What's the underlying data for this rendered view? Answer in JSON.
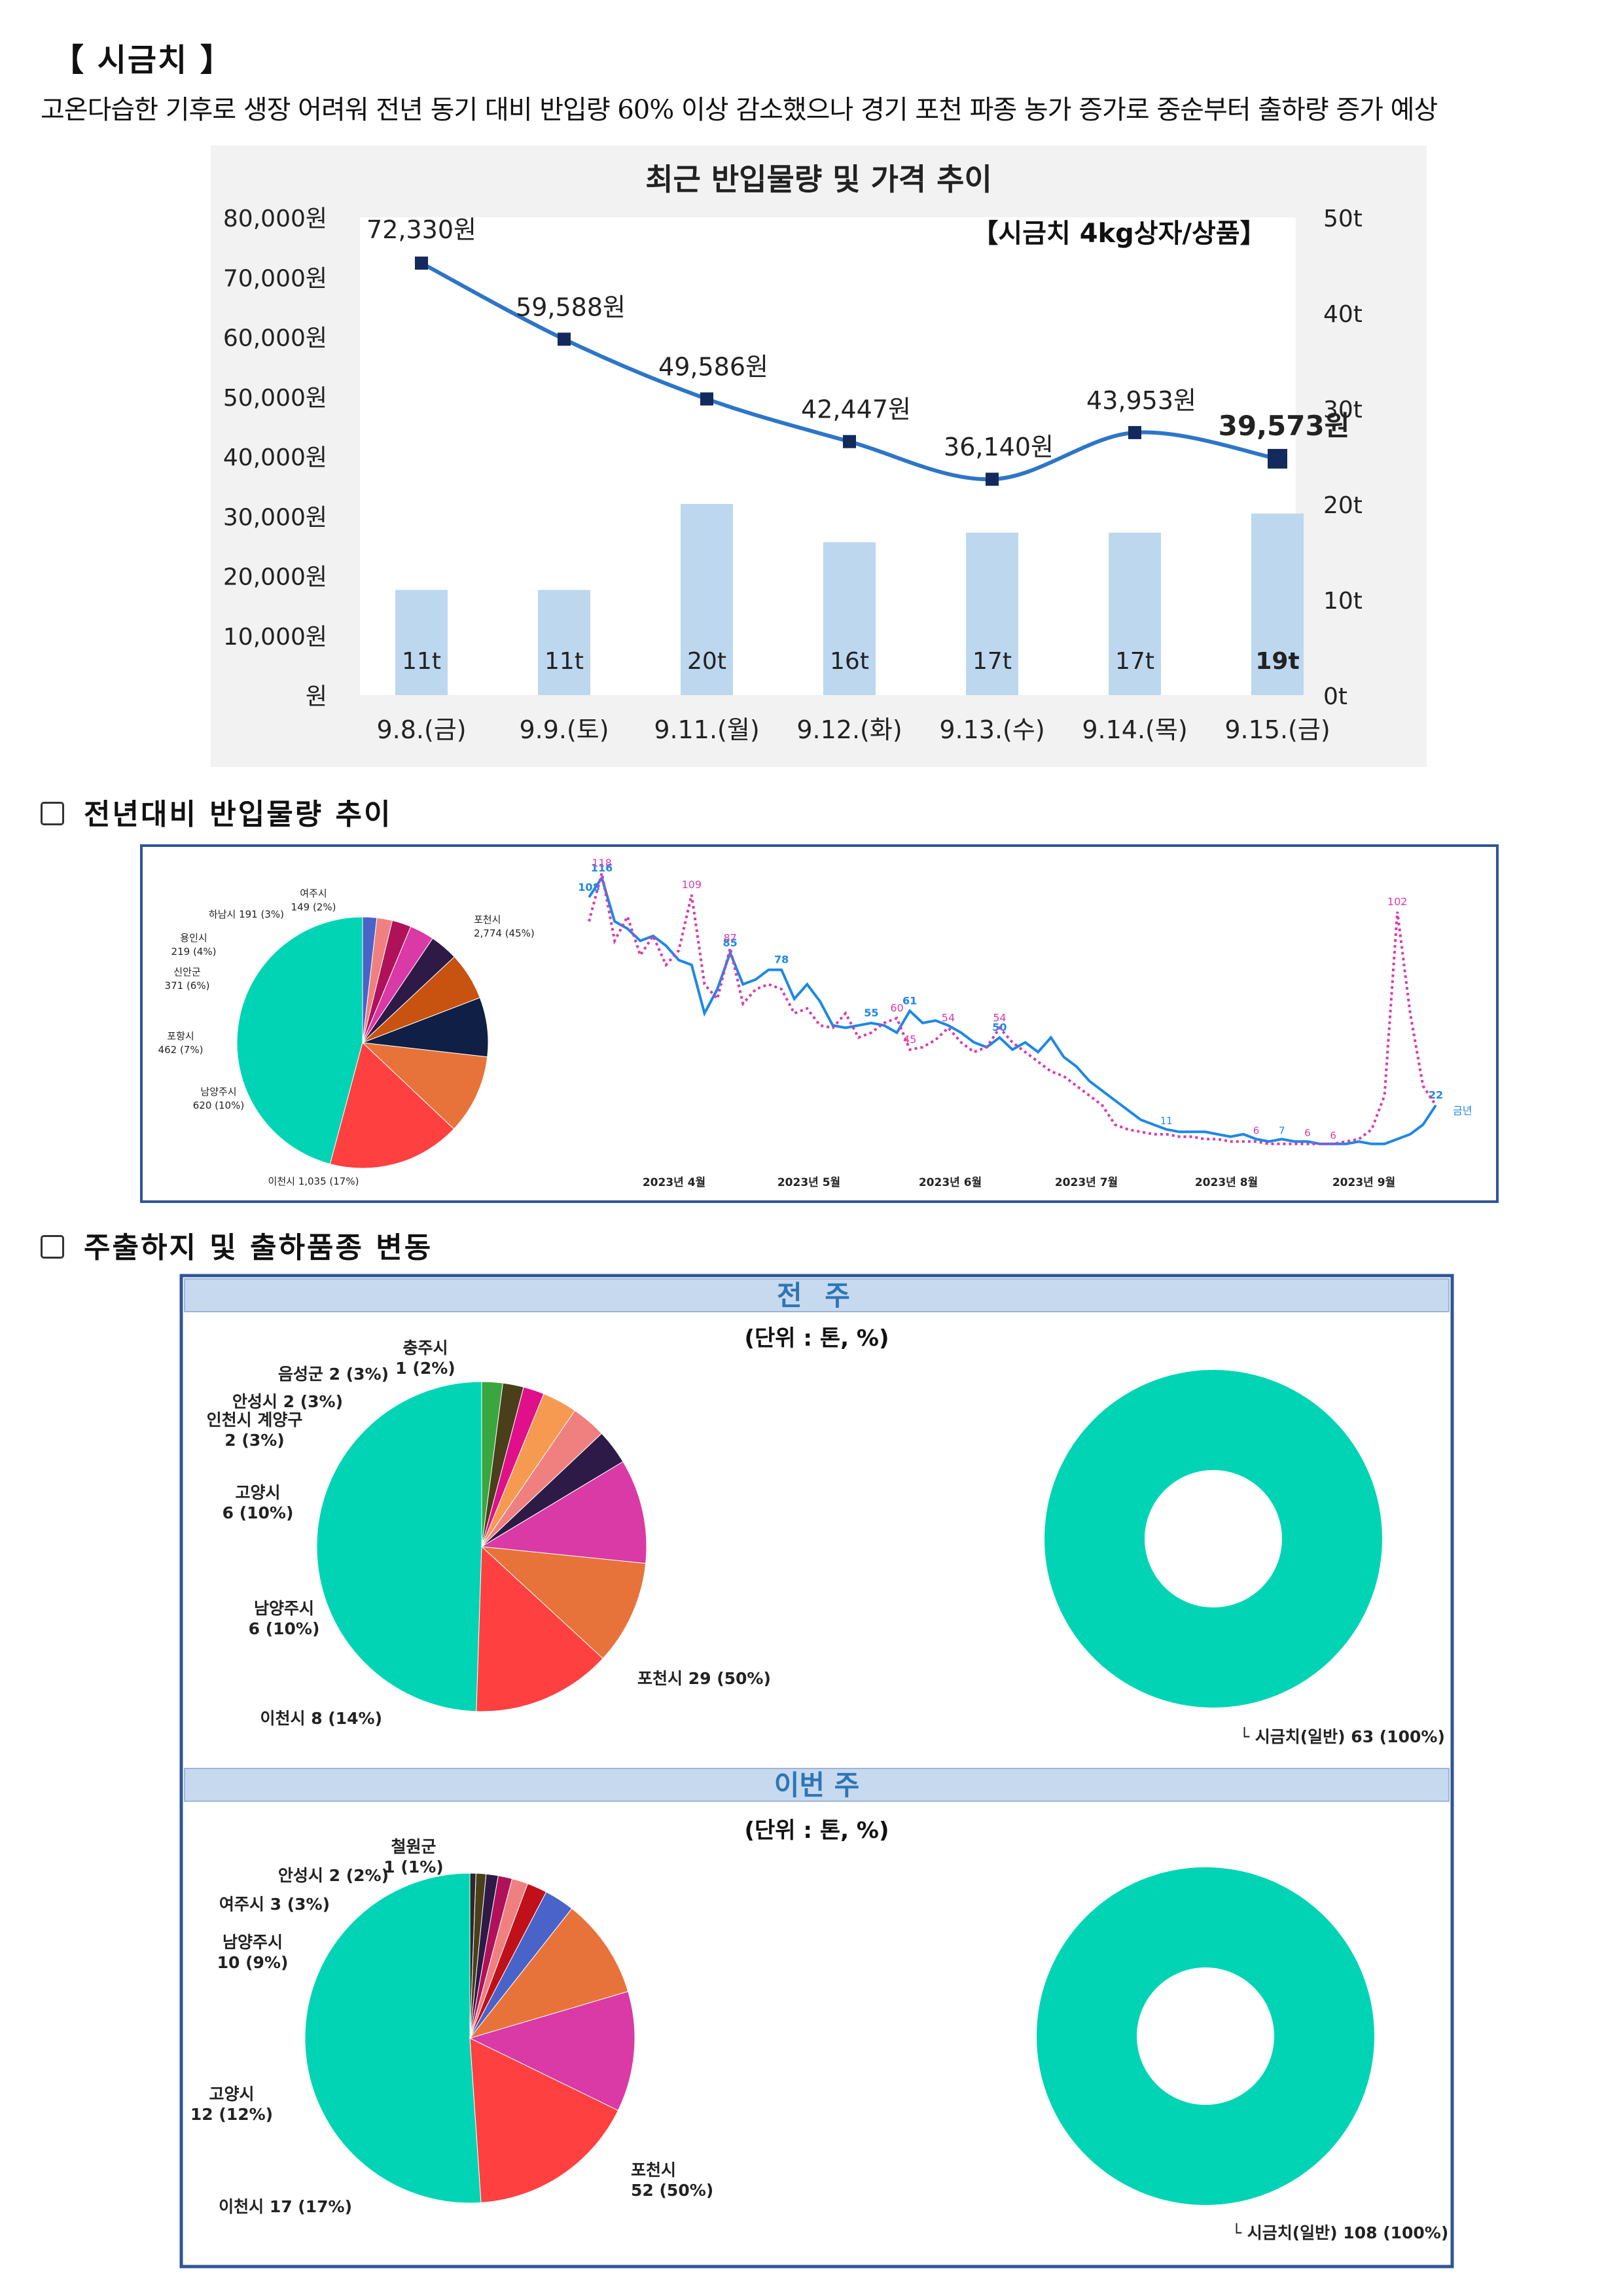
{
  "title": "【 시금치 】",
  "description": "고온다습한 기후로 생장 어려워 전년 동기 대비 반입량 60% 이상 감소했으나 경기 포천 파종 농가 증가로 중순부터 출하량 증가 예상",
  "sections": {
    "trend_heading": "전년대비 반입물량 추이",
    "origin_heading": "주출하지 및 출하품종 변동"
  },
  "colors": {
    "bar": "#bdd7ee",
    "line": "#2e75c8",
    "marker": "#142a5c",
    "cur_year": "#1e88e5",
    "prev_year": "#d63cae",
    "panel_border": "#2f5597",
    "panel_header": "#c7d9ef",
    "panel_header_text": "#2e75b6"
  },
  "chart_data": [
    {
      "type": "bar+line",
      "title": "최근 반입물량 및 가격 추이",
      "subtitle": "【시금치 4kg상자/상품】",
      "categories": [
        "9.8.(금)",
        "9.9.(토)",
        "9.11.(월)",
        "9.12.(화)",
        "9.13.(수)",
        "9.14.(목)",
        "9.15.(금)"
      ],
      "price_values": [
        72330,
        59588,
        49586,
        42447,
        36140,
        43953,
        39573
      ],
      "price_labels": [
        "72,330원",
        "59,588원",
        "49,586원",
        "42,447원",
        "36,140원",
        "43,953원",
        "39,573원"
      ],
      "volume_values": [
        11,
        11,
        20,
        16,
        17,
        17,
        19
      ],
      "volume_labels": [
        "11t",
        "11t",
        "20t",
        "16t",
        "17t",
        "17t",
        "19t"
      ],
      "y_left_ticks": [
        "80,000원",
        "70,000원",
        "60,000원",
        "50,000원",
        "40,000원",
        "30,000원",
        "20,000원",
        "10,000원",
        "원"
      ],
      "y_left_lim": [
        0,
        80000
      ],
      "y_right_ticks": [
        "50t",
        "40t",
        "30t",
        "20t",
        "10t",
        "0t"
      ],
      "y_right_lim": [
        0,
        50
      ]
    },
    {
      "type": "pie",
      "slices": [
        {
          "label": "포천시",
          "sub": "2,774 (45%)",
          "value": 2774,
          "color": "#00d4b4"
        },
        {
          "label": "이천시 1,035 (17%)",
          "value": 1035,
          "color": "#ff4040"
        },
        {
          "label": "남양주시",
          "sub": "620 (10%)",
          "value": 620,
          "color": "#e8733a"
        },
        {
          "label": "포항시",
          "sub": "462 (7%)",
          "value": 462,
          "color": "#0f1f45"
        },
        {
          "label": "신안군",
          "sub": "371 (6%)",
          "value": 371,
          "color": "#c8520f"
        },
        {
          "label": "용인시",
          "sub": "219 (4%)",
          "value": 219,
          "color": "#2e1a47"
        },
        {
          "label": "하남시 191 (3%)",
          "value": 191,
          "color": "#d93aa6"
        },
        {
          "label": "여주시",
          "sub": "149 (2%)",
          "value": 149,
          "color": "#b0125a"
        },
        {
          "label": "",
          "value": 120,
          "color": "#f08080"
        },
        {
          "label": "",
          "value": 110,
          "color": "#4a63c8"
        }
      ]
    },
    {
      "type": "line",
      "x_ticks": [
        "2023년 4월",
        "2023년 5월",
        "2023년 6월",
        "2023년 7월",
        "2023년 8월",
        "2023년 9월"
      ],
      "series": [
        {
          "name": "금년",
          "style": "solid",
          "values": [
            108,
            116,
            98,
            95,
            90,
            92,
            88,
            82,
            80,
            60,
            70,
            85,
            72,
            74,
            78,
            78,
            66,
            72,
            65,
            55,
            54,
            55,
            56,
            55,
            52,
            61,
            56,
            57,
            55,
            52,
            48,
            46,
            50,
            45,
            48,
            44,
            50,
            42,
            38,
            32,
            28,
            24,
            20,
            16,
            14,
            12,
            11,
            11,
            11,
            10,
            9,
            10,
            8,
            7,
            8,
            7,
            7,
            6,
            6,
            6,
            7,
            6,
            6,
            8,
            10,
            14,
            22
          ],
          "point_labels": {
            "0": "108",
            "1": "116",
            "11": "85",
            "15": "78",
            "22": "55",
            "25": "61",
            "32": "50",
            "66": "22"
          }
        },
        {
          "name": "",
          "style": "dotted",
          "values": [
            98,
            118,
            90,
            100,
            84,
            92,
            80,
            86,
            109,
            72,
            66,
            87,
            64,
            70,
            72,
            70,
            60,
            62,
            55,
            54,
            60,
            50,
            52,
            56,
            58,
            45,
            46,
            49,
            54,
            48,
            44,
            46,
            54,
            48,
            44,
            40,
            36,
            34,
            30,
            26,
            22,
            14,
            12,
            11,
            10,
            10,
            9,
            9,
            8,
            8,
            7,
            7,
            7,
            6,
            6,
            6,
            6,
            6,
            6,
            7,
            8,
            12,
            26,
            102,
            60,
            30,
            22
          ],
          "point_labels": {
            "1": "118",
            "8": "109",
            "11": "87",
            "24": "60",
            "25": "45",
            "28": "54",
            "32": "54",
            "63": "102"
          }
        }
      ],
      "extra_point_labels": [
        "11",
        "6",
        "7",
        "6",
        "6"
      ]
    },
    {
      "type": "pie",
      "panel": "전 주",
      "unit": "(단위 : 톤, %)",
      "slices": [
        {
          "label": "포천시 29 (50%)",
          "value": 29,
          "color": "#00d4b4"
        },
        {
          "label": "이천시 8 (14%)",
          "value": 8,
          "color": "#ff4040"
        },
        {
          "label": "남양주시",
          "sub": "6 (10%)",
          "value": 6,
          "color": "#e8733a"
        },
        {
          "label": "고양시",
          "sub": "6 (10%)",
          "value": 6,
          "color": "#d93aa6"
        },
        {
          "label": "인천시 계양구",
          "sub": "2 (3%)",
          "value": 2,
          "color": "#2e1a47"
        },
        {
          "label": "안성시 2 (3%)",
          "value": 2,
          "color": "#f08080"
        },
        {
          "label": "음성군 2 (3%)",
          "value": 2,
          "color": "#f59a50"
        },
        {
          "label": "",
          "value": 1.2,
          "color": "#e0108a"
        },
        {
          "label": "충주시",
          "sub": "1 (2%)",
          "value": 1.2,
          "color": "#4a3f1a"
        },
        {
          "label": "",
          "value": 1.2,
          "color": "#3aa640"
        }
      ]
    },
    {
      "type": "donut",
      "panel": "전 주",
      "slices": [
        {
          "label": "시금치(일반) 63 (100%)",
          "value": 63,
          "color": "#00d4b4"
        }
      ]
    },
    {
      "type": "pie",
      "panel": "이번 주",
      "unit": "(단위 : 톤, %)",
      "slices": [
        {
          "label": "포천시",
          "sub": "52 (50%)",
          "value": 52,
          "color": "#00d4b4"
        },
        {
          "label": "이천시 17 (17%)",
          "value": 17,
          "color": "#ff4040"
        },
        {
          "label": "고양시",
          "sub": "12 (12%)",
          "value": 12,
          "color": "#d93aa6"
        },
        {
          "label": "남양주시",
          "sub": "10 (9%)",
          "value": 10,
          "color": "#e8733a"
        },
        {
          "label": "여주시 3 (3%)",
          "value": 3,
          "color": "#4a63c8"
        },
        {
          "label": "안성시 2 (2%)",
          "value": 2,
          "color": "#c0101a"
        },
        {
          "label": "",
          "value": 1.6,
          "color": "#f08080"
        },
        {
          "label": "",
          "value": 1.4,
          "color": "#b0125a"
        },
        {
          "label": "",
          "value": 1.2,
          "color": "#2e1a47"
        },
        {
          "label": "철원군",
          "sub": "1 (1%)",
          "value": 1,
          "color": "#4a3f1a"
        },
        {
          "label": "",
          "value": 0.6,
          "color": "#2a2a2a"
        }
      ]
    },
    {
      "type": "donut",
      "panel": "이번 주",
      "slices": [
        {
          "label": "시금치(일반) 108 (100%)",
          "value": 108,
          "color": "#00d4b4"
        }
      ]
    }
  ]
}
